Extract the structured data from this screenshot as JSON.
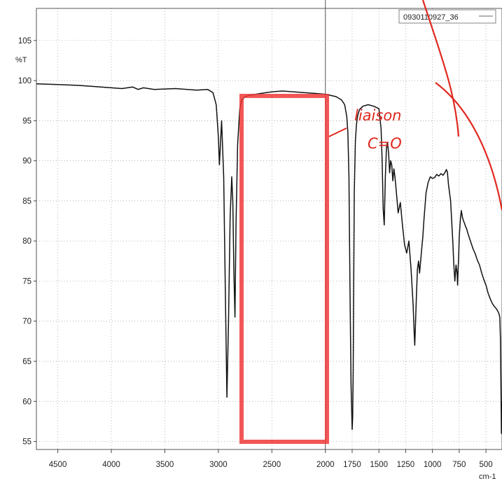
{
  "chart_data": {
    "type": "line",
    "title": "",
    "xlabel": "",
    "ylabel": "%T",
    "x_unit": "cm-1",
    "xlim": [
      4700,
      350
    ],
    "ylim": [
      54,
      109
    ],
    "x_ticks": [
      4500,
      4000,
      3500,
      3000,
      2500,
      2000,
      1750,
      1500,
      1250,
      1000,
      750,
      500
    ],
    "y_ticks": [
      55,
      60,
      65,
      70,
      75,
      80,
      85,
      90,
      95,
      100,
      105
    ],
    "grid": true,
    "legend": {
      "position": "top-right",
      "entries": [
        "0930110927_36"
      ]
    },
    "cursor_x": 2000,
    "series": [
      {
        "name": "0930110927_36",
        "color": "#111111",
        "x": [
          4700,
          4500,
          4300,
          4100,
          3900,
          3800,
          3750,
          3700,
          3600,
          3400,
          3200,
          3100,
          3050,
          3020,
          3000,
          2990,
          2970,
          2950,
          2935,
          2920,
          2905,
          2890,
          2875,
          2865,
          2855,
          2845,
          2835,
          2820,
          2800,
          2780,
          2750,
          2700,
          2650,
          2600,
          2500,
          2400,
          2300,
          2200,
          2100,
          2000,
          1900,
          1850,
          1820,
          1800,
          1790,
          1780,
          1770,
          1760,
          1750,
          1745,
          1740,
          1735,
          1730,
          1720,
          1710,
          1700,
          1690,
          1680,
          1650,
          1600,
          1550,
          1500,
          1480,
          1470,
          1460,
          1450,
          1440,
          1430,
          1420,
          1410,
          1400,
          1390,
          1380,
          1370,
          1360,
          1350,
          1340,
          1320,
          1300,
          1280,
          1260,
          1240,
          1220,
          1200,
          1180,
          1170,
          1165,
          1160,
          1150,
          1140,
          1130,
          1120,
          1110,
          1100,
          1090,
          1080,
          1060,
          1040,
          1020,
          1000,
          980,
          960,
          940,
          920,
          900,
          880,
          870,
          860,
          850,
          830,
          810,
          800,
          790,
          780,
          770,
          765,
          760,
          755,
          750,
          740,
          730,
          720,
          710,
          700,
          690,
          680,
          670,
          660,
          650,
          640,
          620,
          600,
          580,
          560,
          540,
          520,
          500,
          480,
          460,
          440,
          420,
          400,
          380,
          370,
          365,
          360,
          355,
          350
        ],
        "y": [
          99.6,
          99.5,
          99.4,
          99.2,
          99.0,
          99.2,
          98.9,
          99.1,
          98.9,
          99.0,
          98.8,
          98.9,
          98.5,
          97.0,
          93.0,
          89.5,
          95.0,
          88.0,
          74.0,
          60.5,
          70.0,
          83.0,
          88.0,
          85.0,
          76.0,
          70.5,
          82.0,
          92.0,
          96.5,
          97.6,
          98.0,
          98.2,
          98.3,
          98.4,
          98.6,
          98.7,
          98.6,
          98.5,
          98.4,
          98.3,
          98.0,
          97.6,
          97.0,
          95.5,
          93.5,
          88.0,
          74.0,
          62.0,
          56.5,
          58.0,
          64.0,
          76.0,
          86.0,
          92.5,
          94.5,
          95.5,
          96.0,
          96.4,
          96.8,
          97.0,
          96.8,
          96.5,
          94.0,
          90.0,
          84.0,
          82.0,
          88.0,
          91.5,
          92.3,
          91.0,
          88.5,
          90.0,
          89.5,
          87.5,
          89.0,
          88.0,
          86.5,
          83.5,
          84.8,
          82.0,
          79.5,
          78.5,
          80.0,
          76.5,
          72.0,
          68.5,
          67.0,
          69.0,
          73.0,
          76.5,
          77.5,
          76.0,
          77.5,
          79.0,
          80.5,
          82.5,
          86.0,
          87.3,
          88.0,
          87.8,
          87.9,
          88.3,
          88.1,
          88.4,
          88.2,
          88.6,
          88.9,
          88.6,
          87.0,
          85.0,
          80.0,
          77.0,
          75.0,
          77.0,
          76.0,
          74.5,
          76.5,
          78.0,
          80.5,
          82.5,
          83.8,
          83.0,
          82.5,
          82.2,
          81.8,
          81.5,
          81.0,
          80.6,
          80.2,
          79.8,
          79.0,
          78.4,
          77.6,
          77.0,
          76.0,
          75.2,
          74.5,
          73.5,
          72.8,
          72.2,
          71.8,
          71.5,
          71.0,
          70.5,
          68.0,
          62.0,
          56.0,
          60.0
        ]
      }
    ]
  },
  "annotation": {
    "line1": "liaison",
    "line2": "C=O"
  }
}
